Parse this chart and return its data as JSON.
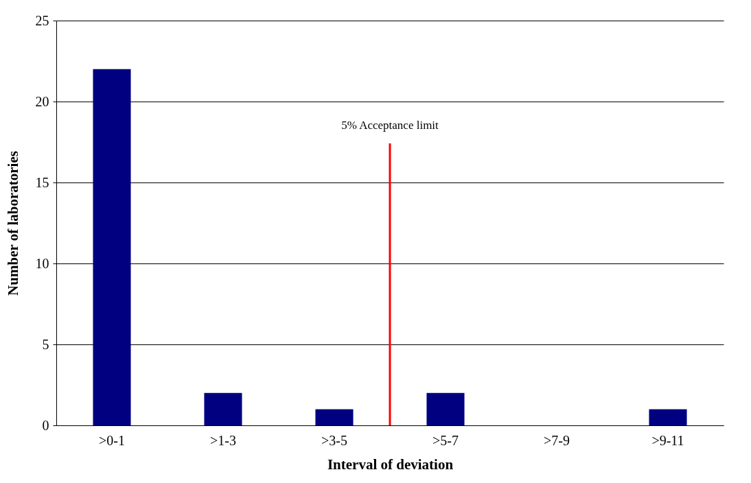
{
  "chart_data": {
    "type": "bar",
    "xlabel": "Interval of deviation",
    "ylabel": "Number of laboratories",
    "categories": [
      ">0-1",
      ">1-3",
      ">3-5",
      ">5-7",
      ">7-9",
      ">9-11"
    ],
    "values": [
      22,
      2,
      1,
      2,
      0,
      1
    ],
    "color": "#000080",
    "ylim": [
      0,
      25
    ],
    "yticks": [
      0,
      5,
      10,
      15,
      20,
      25
    ],
    "grid": "y",
    "ref_lines": [
      {
        "axis": "x",
        "value": ">3-5",
        "label": "5% Acceptance limit",
        "color": "#ff0000"
      }
    ]
  }
}
